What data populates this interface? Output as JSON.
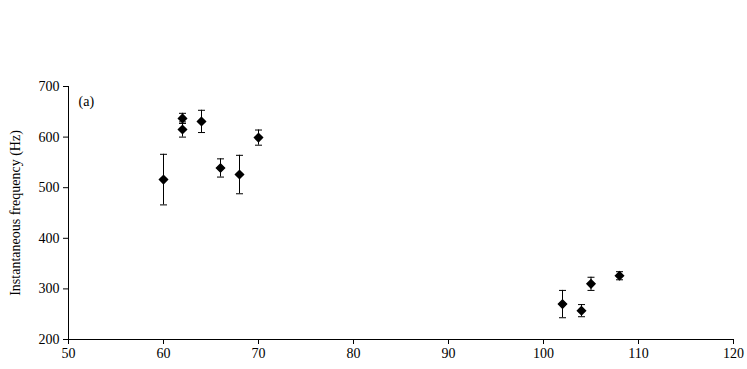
{
  "chart_data": {
    "type": "scatter",
    "annotation": "(a)",
    "y_label": "Instantaneous frequency (Hz)",
    "x": [
      60,
      62,
      62,
      64,
      66,
      68,
      70,
      102,
      104,
      105,
      108
    ],
    "values": [
      516,
      637,
      615,
      631,
      539,
      526,
      599,
      270,
      257,
      310,
      326
    ],
    "error": [
      50,
      10,
      15,
      22,
      18,
      38,
      15,
      27,
      12,
      13,
      8
    ],
    "color": "#000000",
    "marker": "diamond",
    "xlim": [
      50,
      120
    ],
    "xticks": [
      50,
      60,
      70,
      80,
      90,
      100,
      110,
      120
    ],
    "ylim": [
      200,
      700
    ],
    "yticks": [
      200,
      300,
      400,
      500,
      600,
      700
    ],
    "grid": false
  }
}
